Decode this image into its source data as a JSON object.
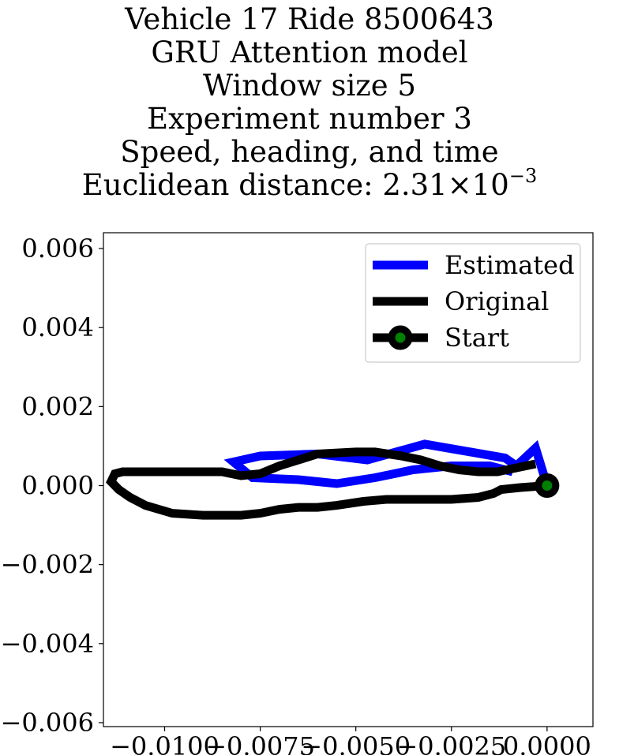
{
  "chart_data": {
    "type": "line",
    "title_lines": [
      "Vehicle 17 Ride 8500643",
      "GRU Attention model",
      "Window size 5",
      "Experiment number 3",
      "Speed, heading, and time"
    ],
    "distance_prefix": "Euclidean distance: ",
    "distance_mantissa": "2.31",
    "distance_times": "×",
    "distance_base": "10",
    "distance_exponent": "−3",
    "xlim": [
      -0.0116,
      0.0012
    ],
    "ylim": [
      -0.0061,
      0.0064
    ],
    "xticks": [
      -0.01,
      -0.0075,
      -0.005,
      -0.0025,
      0.0
    ],
    "xtick_labels": [
      "−0.0100",
      "−0.0075",
      "−0.0050",
      "−0.0025",
      "0.0000"
    ],
    "yticks": [
      0.006,
      0.004,
      0.002,
      0.0,
      -0.002,
      -0.004,
      -0.006
    ],
    "ytick_labels": [
      "0.006",
      "0.004",
      "0.002",
      "0.000",
      "−0.002",
      "−0.004",
      "−0.006"
    ],
    "grid": false,
    "legend_position": "top-right",
    "series": [
      {
        "name": "Estimated",
        "color": "#0000ff",
        "points": [
          [
            0.0,
            0.0
          ],
          [
            -0.0003,
            0.00095
          ],
          [
            -0.0008,
            0.0005
          ],
          [
            -0.0011,
            0.0007
          ],
          [
            -0.002,
            0.00085
          ],
          [
            -0.0032,
            0.00105
          ],
          [
            -0.0047,
            0.00065
          ],
          [
            -0.006,
            0.0008
          ],
          [
            -0.0075,
            0.00075
          ],
          [
            -0.0082,
            0.0006
          ],
          [
            -0.0077,
            0.0002
          ],
          [
            -0.0065,
            0.00015
          ],
          [
            -0.0055,
            5e-05
          ],
          [
            -0.0045,
            0.0002
          ],
          [
            -0.0035,
            0.0004
          ],
          [
            -0.0025,
            0.0005
          ],
          [
            -0.0015,
            0.0005
          ],
          [
            -0.0009,
            0.00035
          ]
        ]
      },
      {
        "name": "Original",
        "color": "#000000",
        "points": [
          [
            0.0,
            0.0
          ],
          [
            -0.0007,
            -5e-05
          ],
          [
            -0.0012,
            -0.0001
          ],
          [
            -0.0014,
            -0.0002
          ],
          [
            -0.0018,
            -0.0003
          ],
          [
            -0.0025,
            -0.00035
          ],
          [
            -0.0035,
            -0.00035
          ],
          [
            -0.0042,
            -0.00035
          ],
          [
            -0.0048,
            -0.0004
          ],
          [
            -0.0055,
            -0.0005
          ],
          [
            -0.006,
            -0.00055
          ],
          [
            -0.0065,
            -0.00055
          ],
          [
            -0.007,
            -0.0006
          ],
          [
            -0.0075,
            -0.0007
          ],
          [
            -0.008,
            -0.00075
          ],
          [
            -0.009,
            -0.00075
          ],
          [
            -0.0098,
            -0.0007
          ],
          [
            -0.0105,
            -0.0005
          ],
          [
            -0.0109,
            -0.0003
          ],
          [
            -0.0112,
            -0.0001
          ],
          [
            -0.0114,
            0.0001
          ],
          [
            -0.0113,
            0.0003
          ],
          [
            -0.0111,
            0.00035
          ],
          [
            -0.0105,
            0.00035
          ],
          [
            -0.0095,
            0.00035
          ],
          [
            -0.0085,
            0.00035
          ],
          [
            -0.008,
            0.00025
          ],
          [
            -0.0075,
            0.0003
          ],
          [
            -0.007,
            0.0005
          ],
          [
            -0.0065,
            0.00065
          ],
          [
            -0.006,
            0.0008
          ],
          [
            -0.005,
            0.00085
          ],
          [
            -0.0045,
            0.00085
          ],
          [
            -0.0038,
            0.00075
          ],
          [
            -0.0033,
            0.00065
          ],
          [
            -0.0028,
            0.0005
          ],
          [
            -0.0023,
            0.0004
          ],
          [
            -0.0018,
            0.00035
          ],
          [
            -0.0013,
            0.00035
          ],
          [
            -0.0008,
            0.00045
          ],
          [
            -0.0003,
            0.00055
          ]
        ]
      }
    ],
    "start": {
      "name": "Start",
      "x": 0.0,
      "y": 0.0,
      "color": "#008000"
    }
  }
}
